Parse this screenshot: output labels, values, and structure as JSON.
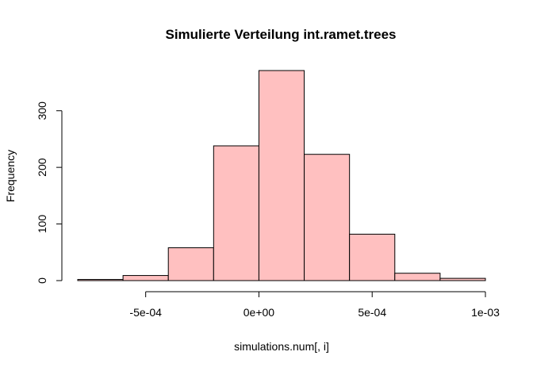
{
  "chart_data": {
    "type": "bar",
    "title": "Simulierte Verteilung int.ramet.trees",
    "xlabel": "simulations.num[, i]",
    "ylabel": "Frequency",
    "bar_color": "#FFC0C0",
    "bins": [
      {
        "start": -0.0008,
        "end": -0.0006,
        "count": 2
      },
      {
        "start": -0.0006,
        "end": -0.0004,
        "count": 9
      },
      {
        "start": -0.0004,
        "end": -0.0002,
        "count": 58
      },
      {
        "start": -0.0002,
        "end": 0.0,
        "count": 238
      },
      {
        "start": 0.0,
        "end": 0.0002,
        "count": 371
      },
      {
        "start": 0.0002,
        "end": 0.0004,
        "count": 223
      },
      {
        "start": 0.0004,
        "end": 0.0006,
        "count": 82
      },
      {
        "start": 0.0006,
        "end": 0.0008,
        "count": 13
      },
      {
        "start": 0.0008,
        "end": 0.001,
        "count": 4
      }
    ],
    "xlim": [
      -0.0008,
      0.001
    ],
    "ylim": [
      0,
      371
    ],
    "x_ticks": [
      {
        "value": -0.0005,
        "label": "-5e-04"
      },
      {
        "value": 0.0,
        "label": "0e+00"
      },
      {
        "value": 0.0005,
        "label": "5e-04"
      },
      {
        "value": 0.001,
        "label": "1e-03"
      }
    ],
    "y_ticks": [
      {
        "value": 0,
        "label": "0"
      },
      {
        "value": 100,
        "label": "100"
      },
      {
        "value": 200,
        "label": "200"
      },
      {
        "value": 300,
        "label": "300"
      }
    ],
    "grid": false,
    "legend": "none"
  }
}
